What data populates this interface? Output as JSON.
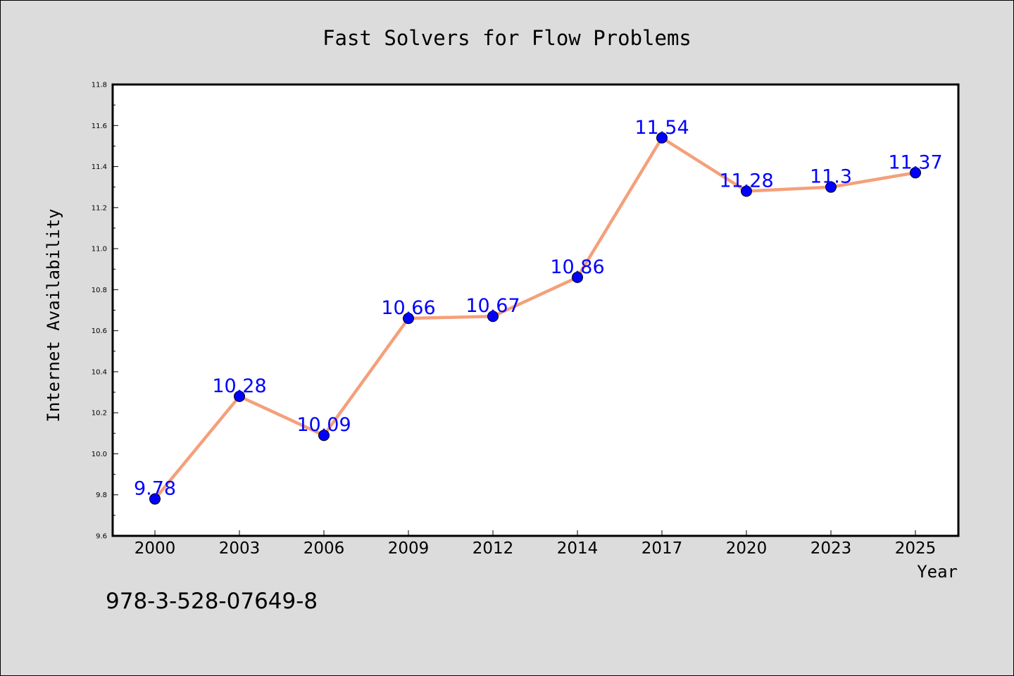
{
  "chart_data": {
    "type": "line",
    "title": "Fast Solvers for Flow Problems",
    "xlabel": "Year",
    "ylabel": "Internet Availability",
    "categories": [
      "2000",
      "2003",
      "2006",
      "2009",
      "2012",
      "2014",
      "2017",
      "2020",
      "2023",
      "2025"
    ],
    "series": [
      {
        "values": [
          9.78,
          10.28,
          10.09,
          10.66,
          10.67,
          10.86,
          11.54,
          11.28,
          11.3,
          11.37
        ],
        "labels": [
          "9.78",
          "10.28",
          "10.09",
          "10.66",
          "10.67",
          "10.86",
          "11.54",
          "11.28",
          "11.3",
          "11.37"
        ],
        "line_color": "#f4a07a",
        "marker_color": "#0000ff",
        "label_color": "#0000ff"
      }
    ],
    "ylim": [
      9.6,
      11.8
    ],
    "yticks": [
      "9.6",
      "9.8",
      "10.0",
      "10.2",
      "10.4",
      "10.6",
      "10.8",
      "11.0",
      "11.2",
      "11.4",
      "11.6",
      "11.8"
    ],
    "grid": false,
    "legend": "none"
  },
  "footer": {
    "isbn": "978-3-528-07649-8"
  }
}
